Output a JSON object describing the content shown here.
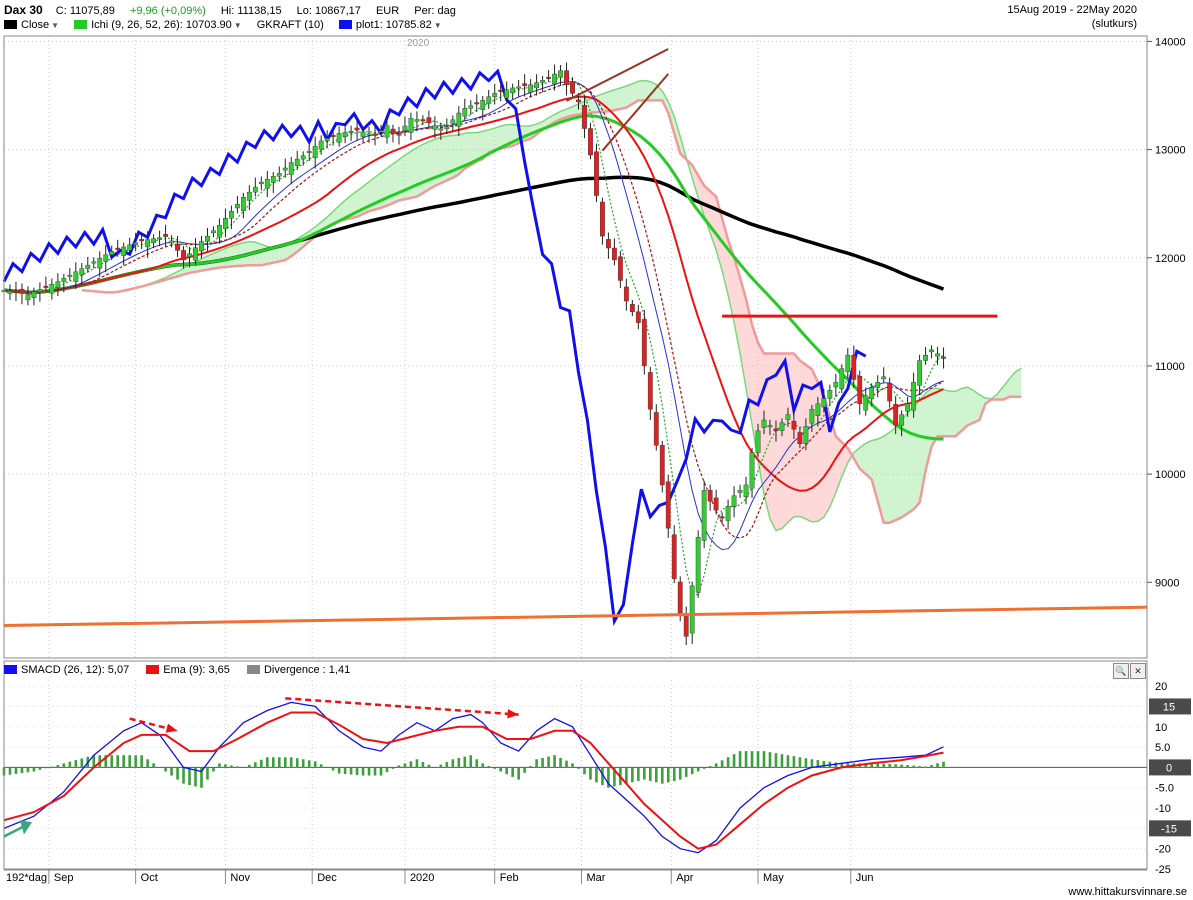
{
  "header": {
    "symbol": "Dax 30",
    "close": "C: 11075,89",
    "change": "+9,96 (+0,09%)",
    "high": "Hi: 11138,15",
    "low": "Lo: 10867,17",
    "currency": "EUR",
    "period": "Per: dag",
    "range": "15Aug 2019 - 22May 2020",
    "note": "(slutkurs)",
    "legend": [
      {
        "label": "Close",
        "color": "#000000"
      },
      {
        "label": "Ichi (9, 26, 52, 26): 10703.90",
        "color": "#22cc22"
      },
      {
        "label": "GKRAFT (10)",
        "color": ""
      },
      {
        "label": "plot1: 10785.82",
        "color": "#1010ee"
      }
    ]
  },
  "macd_header": {
    "items": [
      {
        "label": "SMACD (26, 12): 5,07",
        "color": "#1010ee"
      },
      {
        "label": "Ema (9): 3,65",
        "color": "#ee1111"
      },
      {
        "label": "Divergence : 1,41",
        "color": "#888888"
      }
    ]
  },
  "footer": {
    "period_label": "192*dag",
    "watermark": "www.hittakursvinnare.se"
  },
  "chart_data": [
    {
      "type": "line",
      "title": "Dax 30",
      "ylim": [
        8300,
        14050
      ],
      "yticks": [
        "14000",
        "13000",
        "12000",
        "11000",
        "10000",
        "9000"
      ],
      "xticks": [
        "Sep",
        "Oct",
        "Nov",
        "Dec",
        "2020",
        "Feb",
        "Mar",
        "Apr",
        "May",
        "Jun"
      ],
      "year_marker": "2020",
      "close_series": [
        [
          0,
          11700
        ],
        [
          8,
          11660
        ],
        [
          18,
          11780
        ],
        [
          26,
          11900
        ],
        [
          36,
          12060
        ],
        [
          46,
          12160
        ],
        [
          55,
          12200
        ],
        [
          60,
          11980
        ],
        [
          66,
          12150
        ],
        [
          72,
          12300
        ],
        [
          80,
          12560
        ],
        [
          86,
          12700
        ],
        [
          92,
          12780
        ],
        [
          96,
          12880
        ],
        [
          101,
          12960
        ],
        [
          106,
          13080
        ],
        [
          112,
          13150
        ],
        [
          118,
          13180
        ],
        [
          124,
          13130
        ],
        [
          128,
          13220
        ],
        [
          131,
          13110
        ],
        [
          136,
          13290
        ],
        [
          141,
          13260
        ],
        [
          147,
          13180
        ],
        [
          153,
          13370
        ],
        [
          159,
          13440
        ],
        [
          164,
          13520
        ],
        [
          170,
          13570
        ],
        [
          176,
          13600
        ],
        [
          181,
          13650
        ],
        [
          186,
          13730
        ],
        [
          188,
          13600
        ],
        [
          192,
          13440
        ],
        [
          196,
          12950
        ],
        [
          200,
          12200
        ],
        [
          204,
          11980
        ],
        [
          208,
          11600
        ],
        [
          212,
          11400
        ],
        [
          216,
          10600
        ],
        [
          219,
          10100
        ],
        [
          222,
          9500
        ],
        [
          225,
          8800
        ],
        [
          228,
          8500
        ],
        [
          231,
          9200
        ],
        [
          234,
          9850
        ],
        [
          237,
          9700
        ],
        [
          240,
          9600
        ],
        [
          244,
          9800
        ],
        [
          248,
          9900
        ],
        [
          251,
          10350
        ],
        [
          254,
          10500
        ],
        [
          258,
          10400
        ],
        [
          262,
          10550
        ],
        [
          266,
          10280
        ],
        [
          270,
          10600
        ],
        [
          274,
          10700
        ],
        [
          278,
          10850
        ],
        [
          282,
          11100
        ],
        [
          286,
          10650
        ],
        [
          290,
          10800
        ],
        [
          294,
          10900
        ],
        [
          298,
          10450
        ],
        [
          302,
          10650
        ],
        [
          306,
          11050
        ],
        [
          310,
          11150
        ],
        [
          314,
          11075.89
        ]
      ],
      "series": [
        {
          "name": "Ichi (9, 26, 52, 26)",
          "last": 10703.9
        },
        {
          "name": "plot1",
          "last": 10785.82
        }
      ]
    },
    {
      "type": "line",
      "title": "SMACD",
      "ylim": [
        -25,
        22
      ],
      "yticks": [
        "20",
        "15",
        "10",
        "5.0",
        "0",
        "-5.0",
        "-10",
        "-15",
        "-20",
        "-25"
      ],
      "highlight_ticks": [
        "15",
        "0",
        "-15"
      ],
      "series": [
        {
          "name": "SMACD (26, 12)",
          "last": 5.07,
          "values": [
            [
              0,
              -15
            ],
            [
              10,
              -12
            ],
            [
              20,
              -6
            ],
            [
              30,
              3
            ],
            [
              40,
              9
            ],
            [
              46,
              11
            ],
            [
              52,
              8
            ],
            [
              60,
              0
            ],
            [
              66,
              -1
            ],
            [
              72,
              5
            ],
            [
              80,
              11
            ],
            [
              88,
              14
            ],
            [
              96,
              16
            ],
            [
              104,
              15
            ],
            [
              112,
              9
            ],
            [
              120,
              5
            ],
            [
              126,
              4
            ],
            [
              132,
              8
            ],
            [
              138,
              11
            ],
            [
              144,
              9
            ],
            [
              150,
              12
            ],
            [
              156,
              13
            ],
            [
              160,
              11
            ],
            [
              166,
              6
            ],
            [
              172,
              4
            ],
            [
              178,
              9
            ],
            [
              184,
              12
            ],
            [
              190,
              10
            ],
            [
              196,
              3
            ],
            [
              202,
              -4
            ],
            [
              208,
              -8
            ],
            [
              214,
              -12
            ],
            [
              220,
              -17
            ],
            [
              226,
              -20
            ],
            [
              232,
              -21
            ],
            [
              238,
              -18
            ],
            [
              246,
              -10
            ],
            [
              254,
              -5
            ],
            [
              262,
              -2
            ],
            [
              270,
              0
            ],
            [
              280,
              1
            ],
            [
              290,
              2
            ],
            [
              300,
              2.5
            ],
            [
              308,
              3
            ],
            [
              314,
              5.07
            ]
          ]
        },
        {
          "name": "Ema (9)",
          "last": 3.65,
          "values": [
            [
              0,
              -13
            ],
            [
              10,
              -11
            ],
            [
              20,
              -7
            ],
            [
              30,
              0
            ],
            [
              40,
              6
            ],
            [
              46,
              8
            ],
            [
              54,
              8
            ],
            [
              62,
              4
            ],
            [
              70,
              4
            ],
            [
              78,
              7
            ],
            [
              88,
              11
            ],
            [
              96,
              13.5
            ],
            [
              104,
              13.5
            ],
            [
              112,
              10.5
            ],
            [
              120,
              7
            ],
            [
              128,
              6
            ],
            [
              136,
              7.5
            ],
            [
              144,
              9
            ],
            [
              152,
              10
            ],
            [
              160,
              10
            ],
            [
              168,
              7
            ],
            [
              176,
              7
            ],
            [
              184,
              9
            ],
            [
              190,
              9
            ],
            [
              196,
              6
            ],
            [
              202,
              1
            ],
            [
              208,
              -4
            ],
            [
              214,
              -9
            ],
            [
              220,
              -13
            ],
            [
              226,
              -17
            ],
            [
              232,
              -20
            ],
            [
              238,
              -19
            ],
            [
              246,
              -14
            ],
            [
              254,
              -9
            ],
            [
              262,
              -5
            ],
            [
              270,
              -2
            ],
            [
              280,
              0
            ],
            [
              290,
              1
            ],
            [
              300,
              1.8
            ],
            [
              308,
              2.8
            ],
            [
              314,
              3.65
            ]
          ]
        },
        {
          "name": "Divergence",
          "last": 1.41,
          "values": [
            [
              0,
              -2
            ],
            [
              10,
              -1
            ],
            [
              20,
              1
            ],
            [
              30,
              3
            ],
            [
              40,
              3
            ],
            [
              46,
              3
            ],
            [
              52,
              0
            ],
            [
              60,
              -4
            ],
            [
              66,
              -5
            ],
            [
              72,
              1
            ],
            [
              80,
              0
            ],
            [
              88,
              2.5
            ],
            [
              96,
              2.5
            ],
            [
              104,
              1.5
            ],
            [
              112,
              -1.5
            ],
            [
              120,
              -2
            ],
            [
              126,
              -2
            ],
            [
              132,
              0.5
            ],
            [
              138,
              2
            ],
            [
              144,
              0
            ],
            [
              150,
              2
            ],
            [
              156,
              3
            ],
            [
              160,
              1
            ],
            [
              166,
              -1
            ],
            [
              172,
              -3
            ],
            [
              178,
              2
            ],
            [
              184,
              3
            ],
            [
              190,
              1
            ],
            [
              196,
              -3
            ],
            [
              202,
              -5
            ],
            [
              208,
              -4
            ],
            [
              214,
              -3
            ],
            [
              220,
              -4
            ],
            [
              226,
              -3
            ],
            [
              232,
              -1
            ],
            [
              238,
              1
            ],
            [
              246,
              4
            ],
            [
              254,
              4
            ],
            [
              262,
              3
            ],
            [
              270,
              2
            ],
            [
              280,
              1
            ],
            [
              290,
              1
            ],
            [
              300,
              0.7
            ],
            [
              308,
              0.2
            ],
            [
              314,
              1.41
            ]
          ]
        }
      ]
    }
  ]
}
